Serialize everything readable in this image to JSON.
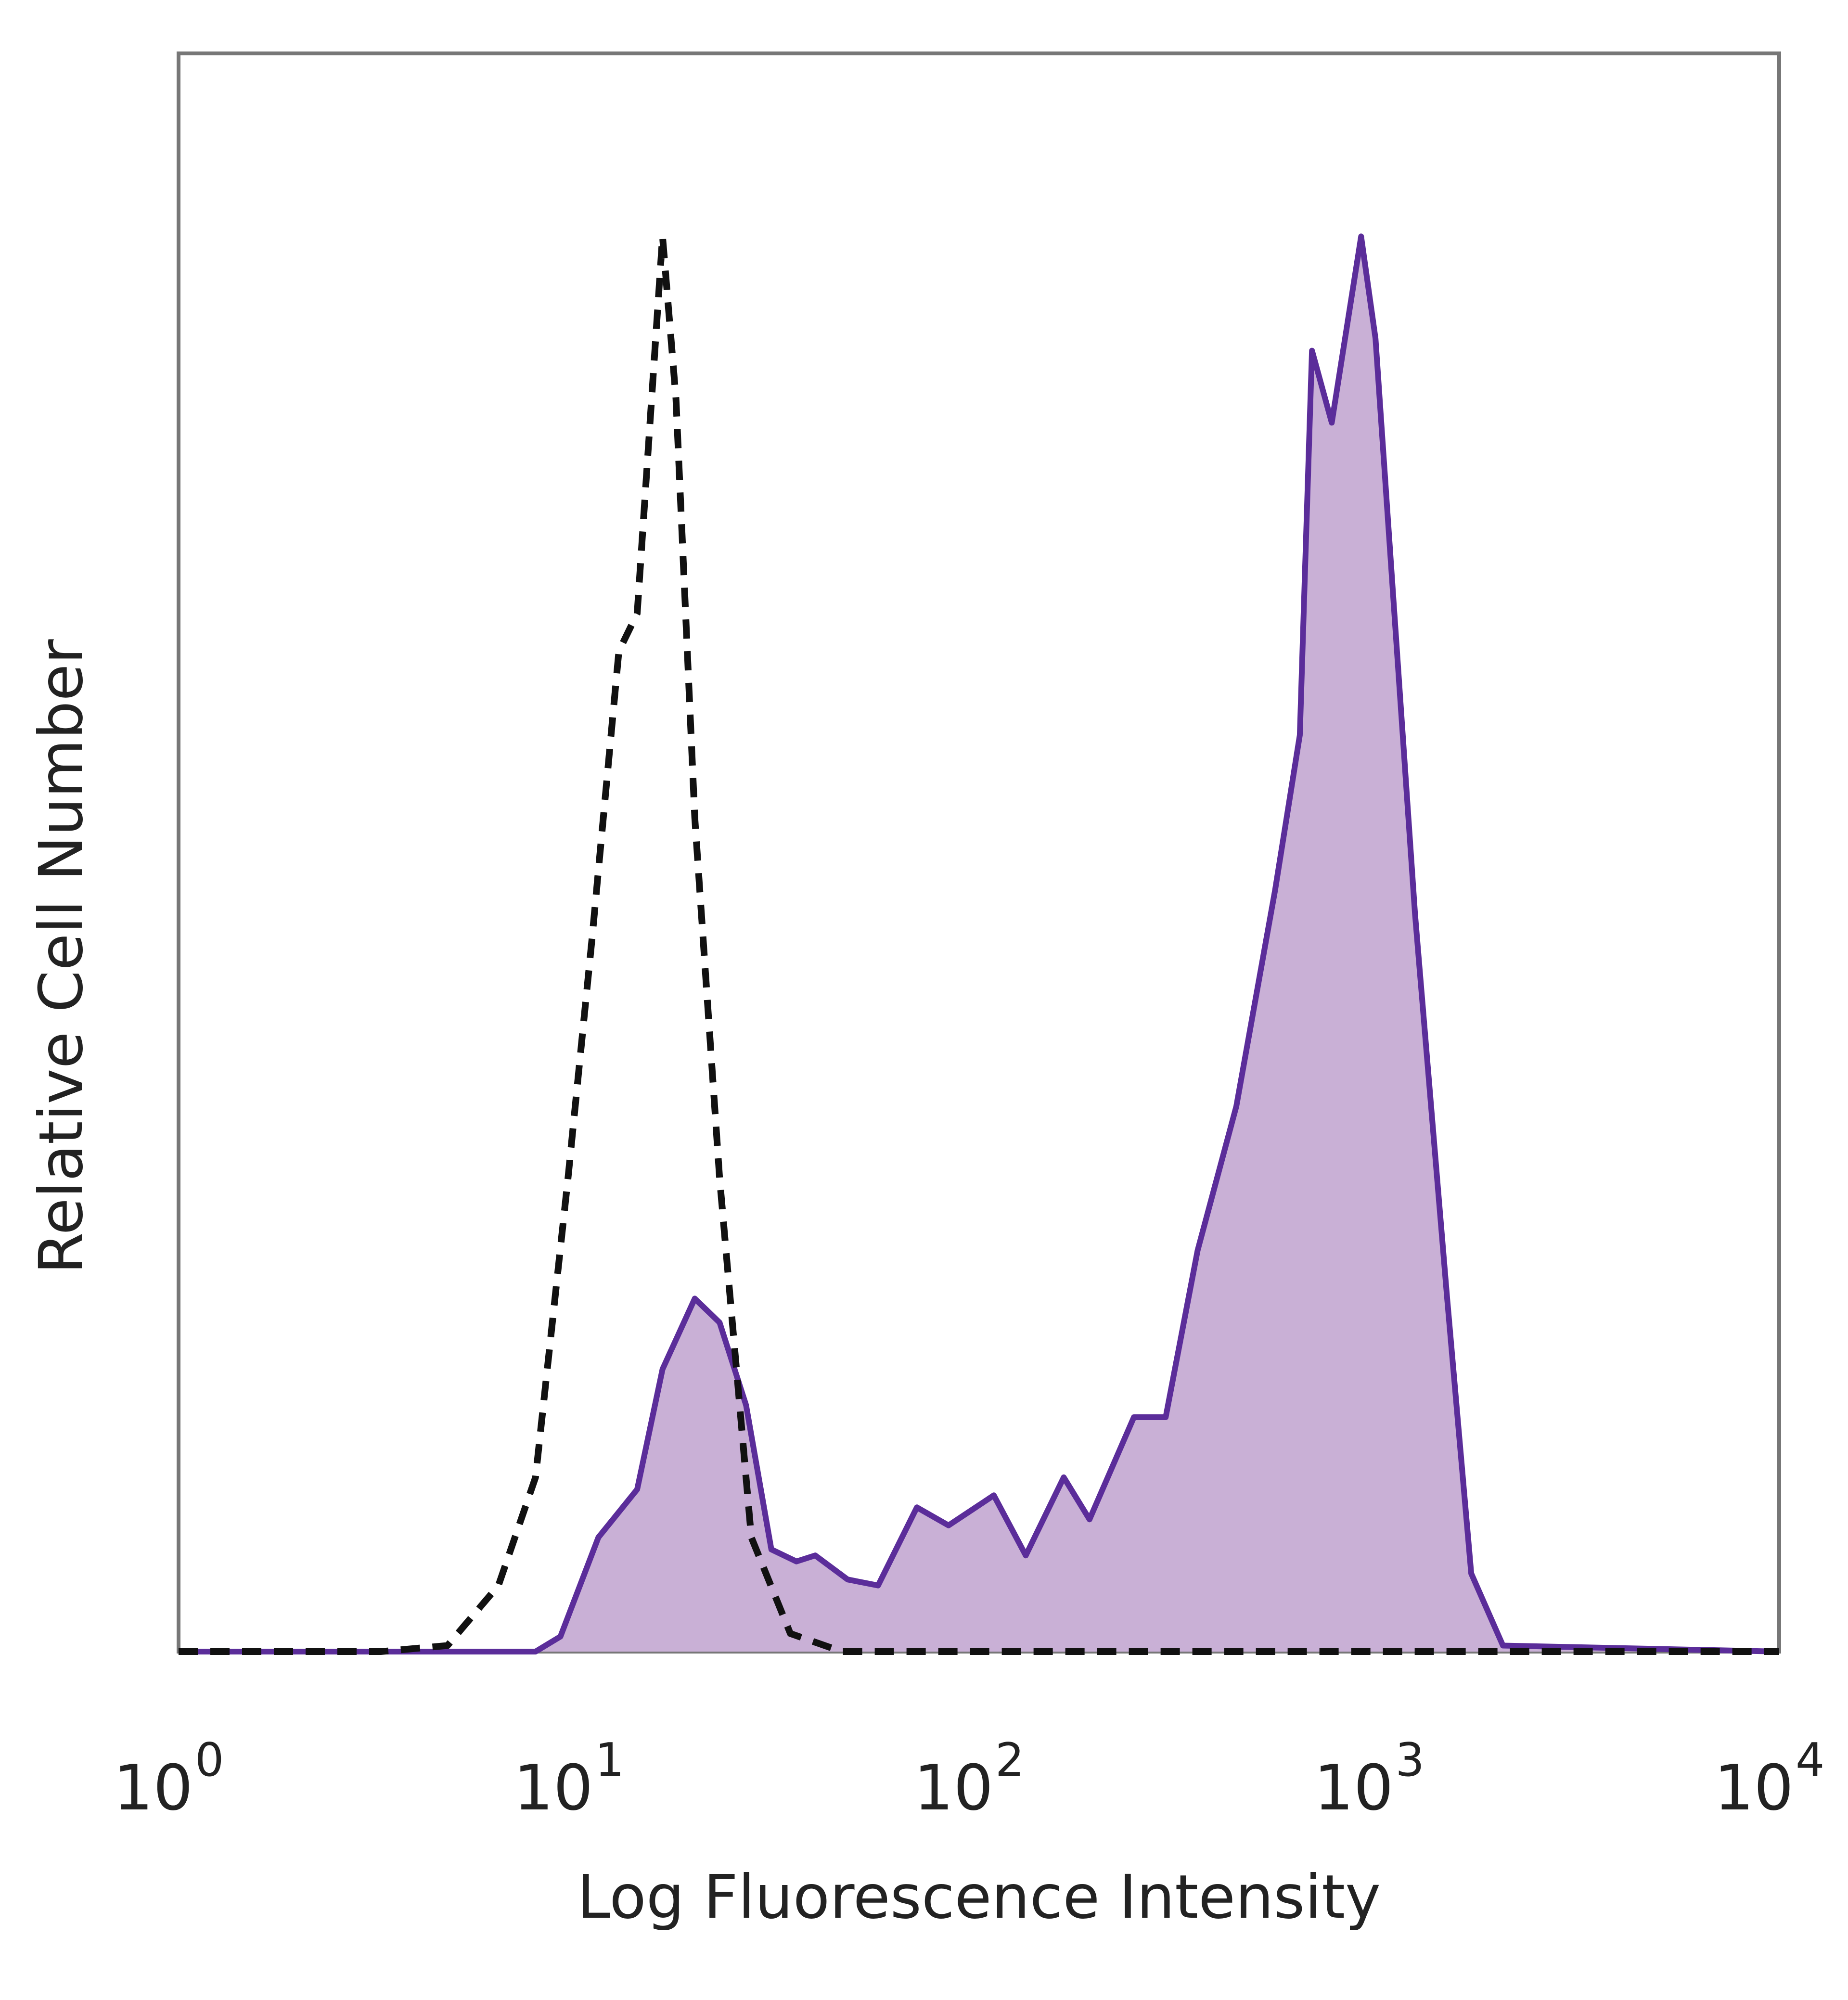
{
  "chart_data": {
    "type": "histogram-overlay",
    "xlabel": "Log Fluorescence Intensity",
    "ylabel": "Relative Cell Number",
    "xscale": "log",
    "xlim": [
      1,
      10000
    ],
    "xticks": [
      {
        "value": 1,
        "label": "10",
        "exponent": "0"
      },
      {
        "value": 10,
        "label": "10",
        "exponent": "1"
      },
      {
        "value": 100,
        "label": "10",
        "exponent": "2"
      },
      {
        "value": 1000,
        "label": "10",
        "exponent": "3"
      },
      {
        "value": 10000,
        "label": "10",
        "exponent": "4"
      }
    ],
    "ylim": [
      0,
      100
    ],
    "series": [
      {
        "color": "#111111",
        "style": "dashed",
        "filled": false,
        "x": [
          1,
          3.2,
          4.7,
          6.3,
          7.8,
          9.4,
          10.8,
          12.6,
          14,
          16.2,
          17.5,
          19.5,
          22.5,
          27,
          33.8,
          45.5,
          10000
        ],
        "values": [
          0,
          0,
          0.4,
          4.4,
          11.6,
          31.5,
          47.5,
          66.6,
          69.1,
          94.2,
          83.4,
          55.5,
          31.5,
          7.6,
          1.2,
          0,
          0
        ]
      },
      {
        "color": "#5b2d9a",
        "fill": "#c9b0d6",
        "style": "solid",
        "filled": true,
        "x": [
          1,
          7.8,
          9,
          11.2,
          14,
          16.2,
          19.5,
          22.5,
          26.2,
          30.3,
          35,
          39,
          47,
          56,
          70,
          84,
          109,
          131,
          163,
          189,
          244,
          293,
          352,
          440,
          550,
          634,
          680,
          762,
          902,
          980,
          1230,
          1480,
          1700,
          2040,
          10000
        ],
        "values": [
          0,
          0,
          1,
          7.6,
          10.8,
          18.8,
          23.5,
          21.9,
          16.4,
          6.8,
          6,
          6.4,
          4.8,
          4.4,
          9.6,
          8.4,
          10.4,
          6.4,
          11.6,
          8.8,
          15.6,
          15.6,
          26.7,
          36.3,
          50.7,
          61,
          86.6,
          81.8,
          94.2,
          87.4,
          49.1,
          23.5,
          5.2,
          0.4,
          0
        ]
      }
    ]
  }
}
